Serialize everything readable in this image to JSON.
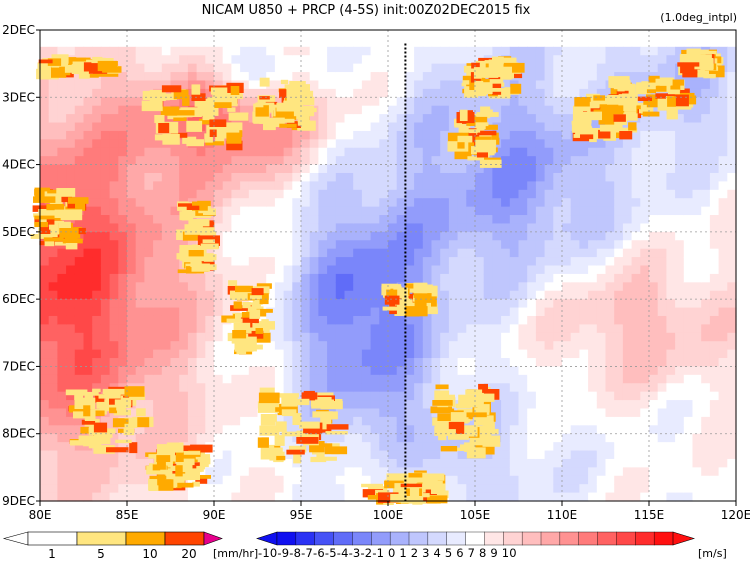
{
  "header": {
    "title": "NICAM  U850 + PRCP (4-5S) init:00Z02DEC2015 fix",
    "note": "(1.0deg_intpl)"
  },
  "chart_data": {
    "type": "heatmap",
    "x_tick_labels": [
      "80E",
      "85E",
      "90E",
      "95E",
      "100E",
      "105E",
      "110E",
      "115E",
      "120E"
    ],
    "x_ticks_deg": [
      80,
      85,
      90,
      95,
      100,
      105,
      110,
      115,
      120
    ],
    "xlim_deg": [
      80,
      120
    ],
    "y_tick_labels": [
      "2DEC",
      "3DEC",
      "4DEC",
      "5DEC",
      "6DEC",
      "7DEC",
      "8DEC",
      "9DEC"
    ],
    "y_ticks_day": [
      2,
      3,
      4,
      5,
      6,
      7,
      8,
      9
    ],
    "ylim_day": [
      2,
      9
    ],
    "grid": true,
    "reference_line_lon_deg": 101,
    "wind_field": {
      "name": "U850",
      "levels": [
        -10,
        -9,
        -8,
        -7,
        -6,
        -5,
        -4,
        -3,
        -2,
        -1,
        0,
        1,
        2,
        3,
        4,
        5,
        6,
        7,
        8,
        9,
        10
      ],
      "colors": [
        "#1010f0",
        "#2a32f4",
        "#4652f6",
        "#606cf8",
        "#7a86fa",
        "#929cfb",
        "#a9b2fc",
        "#bfc6fd",
        "#d4d9fe",
        "#e8ebff",
        "#ffffff",
        "#ffe6e6",
        "#ffd3d3",
        "#ffbebe",
        "#ffa8a8",
        "#ff9292",
        "#ff7b7b",
        "#ff6262",
        "#ff4848",
        "#ff2c2c",
        "#ff1010"
      ],
      "unit": "[m/s]",
      "label_text": "-10-9-8-7-6-5-4-3-2-1 0 1 2 3 4 5 6 7 8 9 10"
    },
    "precip_field": {
      "name": "PRCP",
      "levels": [
        1,
        5,
        10,
        20
      ],
      "colors": [
        "#ffffff",
        "#ffe680",
        "#ffaa00",
        "#ff4500",
        "#e6008c"
      ],
      "unit": "[mm/hr]"
    }
  }
}
